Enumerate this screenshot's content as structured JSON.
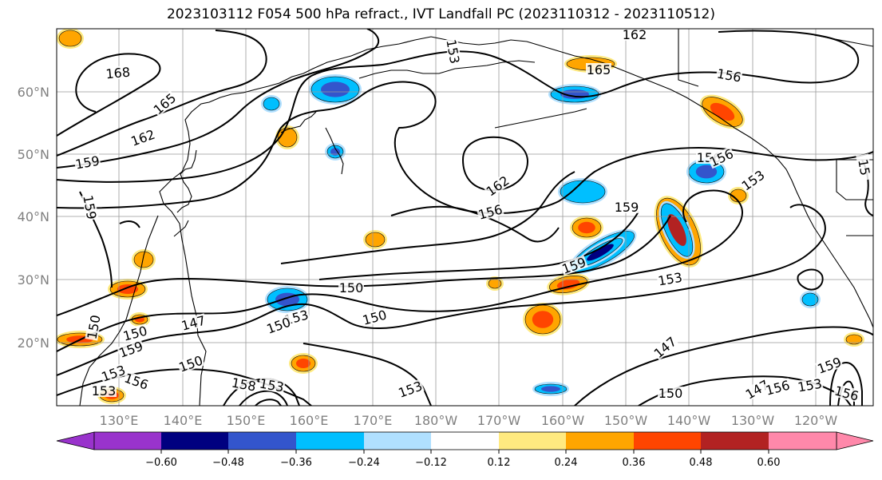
{
  "title": "2023103112 F054 500 hPa refract., IVT Landfall PC (2023110312 - 2023110512)",
  "lat_labels": [
    "60°N",
    "50°N",
    "40°N",
    "30°N",
    "20°N"
  ],
  "lon_labels": [
    "130°E",
    "140°E",
    "150°E",
    "160°E",
    "170°E",
    "180°W",
    "170°W",
    "160°W",
    "150°W",
    "140°W",
    "130°W",
    "120°W"
  ],
  "colorbar": {
    "colors": [
      "#9933cc",
      "#000080",
      "#3355cc",
      "#00bfff",
      "#b0e0ff",
      "#ffffff",
      "#ffea80",
      "#ffa500",
      "#ff4500",
      "#b22222",
      "#ff88aa"
    ],
    "ticks": [
      "−0.60",
      "−0.48",
      "−0.36",
      "−0.24",
      "−0.12",
      "0.12",
      "0.24",
      "0.36",
      "0.48",
      "0.60"
    ]
  },
  "contour_labels": [
    "168",
    "165",
    "162",
    "159",
    "162",
    "165",
    "156",
    "162",
    "156",
    "159",
    "153",
    "156",
    "159",
    "153",
    "150",
    "150",
    "153",
    "150",
    "147",
    "150",
    "159",
    "153",
    "156",
    "147",
    "153",
    "159",
    "156",
    "153",
    "158",
    "153",
    "150",
    "147",
    "156",
    "159",
    "15",
    "150",
    "153",
    "156",
    "150",
    "153"
  ]
}
